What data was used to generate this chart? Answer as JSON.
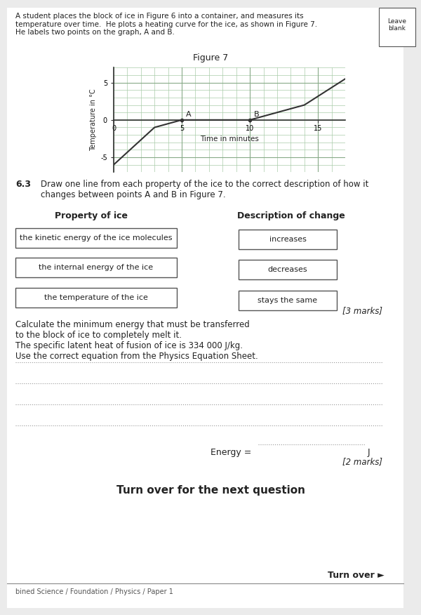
{
  "bg_color": "#e8e8e8",
  "page_bg": "#f0f0f0",
  "title_text": "A student places the block of ice in Figure 6 into a container, and measures its\ntemperature over time.  He plots a heating curve for the ice, as shown in Figure 7.\nHe labels two points on the graph, A and B.",
  "leave_blank_text": "Leave\nblank",
  "figure7_title": "Figure 7",
  "graph_ylabel": "Temperature in °C",
  "graph_xlabel": "Time in minutes",
  "graph_yticks": [
    -5,
    0,
    5
  ],
  "graph_xticks": [
    0,
    5,
    10,
    15
  ],
  "graph_xlim": [
    0,
    17
  ],
  "graph_ylim": [
    -7,
    7
  ],
  "curve_x": [
    0,
    3,
    5,
    10,
    14,
    17
  ],
  "curve_y": [
    -6,
    -1,
    0,
    0,
    2,
    5.5
  ],
  "point_A": [
    5,
    0
  ],
  "point_B": [
    10,
    0
  ],
  "section63_number": "6.3",
  "section63_text": "Draw one line from each property of the ice to the correct description of how it\nchanges between points A and B in Figure 7.",
  "property_header": "Property of ice",
  "description_header": "Description of change",
  "properties": [
    "the kinetic energy of the ice molecules",
    "the internal energy of the ice",
    "the temperature of the ice"
  ],
  "descriptions": [
    "increases",
    "decreases",
    "stays the same"
  ],
  "marks_63": "[3 marks]",
  "calc_text": "Calculate the minimum energy that must be transferred\nto the block of ice to completely melt it.\nThe specific latent heat of fusion of ice is 334 000 J/kg.\nUse the correct equation from the Physics Equation Sheet.",
  "energy_line": "Energy = ",
  "energy_unit": "J",
  "marks_calc": "[2 marks]",
  "turnover_text": "Turn over for the next question",
  "turnover_right": "Turn over ►",
  "footer_text": "bined Science / Foundation / Physics / Paper 1",
  "dotted_line_color": "#999999",
  "box_edge_color": "#555555",
  "grid_color": "#aaccaa",
  "graph_line_color": "#333333",
  "text_color": "#222222",
  "header_color": "#111111"
}
